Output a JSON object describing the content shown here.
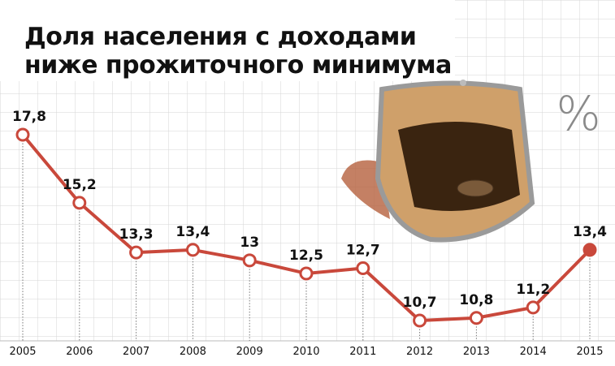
{
  "chart_data": {
    "type": "line",
    "title_lines": [
      "Доля населения с доходами",
      "ниже прожиточного минимума"
    ],
    "unit": "%",
    "categories": [
      "2005",
      "2006",
      "2007",
      "2008",
      "2009",
      "2010",
      "2011",
      "2012",
      "2013",
      "2014",
      "2015"
    ],
    "values": [
      17.8,
      15.2,
      13.3,
      13.4,
      13,
      12.5,
      12.7,
      10.7,
      10.8,
      11.2,
      13.4
    ],
    "value_labels": [
      "17,8",
      "15,2",
      "13,3",
      "13,4",
      "13",
      "12,5",
      "12,7",
      "10,7",
      "10,8",
      "11,2",
      "13,4"
    ],
    "color": "#c9483b",
    "highlight_last": true
  }
}
